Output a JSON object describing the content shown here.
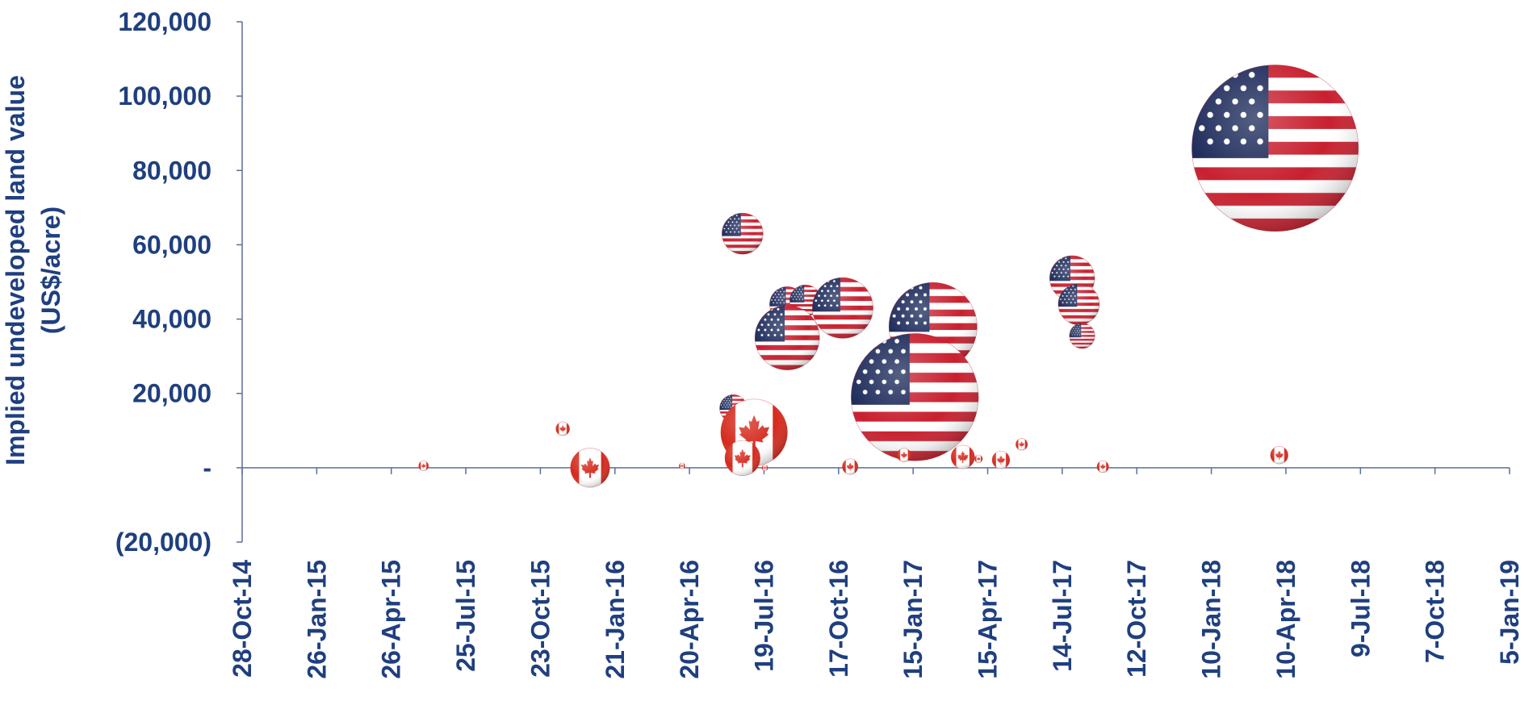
{
  "chart_data": {
    "type": "bubble",
    "y_label": [
      "Implied undeveloped land value",
      "(US$/acre)"
    ],
    "xlim": [
      "2014-10-28",
      "2019-01-05"
    ],
    "xticks": [
      {
        "value": "2014-10-28",
        "label": "28-Oct-14"
      },
      {
        "value": "2015-01-26",
        "label": "26-Jan-15"
      },
      {
        "value": "2015-04-26",
        "label": "26-Apr-15"
      },
      {
        "value": "2015-07-25",
        "label": "25-Jul-15"
      },
      {
        "value": "2015-10-23",
        "label": "23-Oct-15"
      },
      {
        "value": "2016-01-21",
        "label": "21-Jan-16"
      },
      {
        "value": "2016-04-20",
        "label": "20-Apr-16"
      },
      {
        "value": "2016-07-19",
        "label": "19-Jul-16"
      },
      {
        "value": "2016-10-17",
        "label": "17-Oct-16"
      },
      {
        "value": "2017-01-15",
        "label": "15-Jan-17"
      },
      {
        "value": "2017-04-15",
        "label": "15-Apr-17"
      },
      {
        "value": "2017-07-14",
        "label": "14-Jul-17"
      },
      {
        "value": "2017-10-12",
        "label": "12-Oct-17"
      },
      {
        "value": "2018-01-10",
        "label": "10-Jan-18"
      },
      {
        "value": "2018-04-10",
        "label": "10-Apr-18"
      },
      {
        "value": "2018-07-09",
        "label": "9-Jul-18"
      },
      {
        "value": "2018-10-07",
        "label": "7-Oct-18"
      },
      {
        "value": "2019-01-05",
        "label": "5-Jan-19"
      }
    ],
    "ylim": [
      -20000,
      120000
    ],
    "yticks": [
      {
        "value": -20000,
        "label": "(20,000)"
      },
      {
        "value": 0,
        "label": "-"
      },
      {
        "value": 20000,
        "label": "20,000"
      },
      {
        "value": 40000,
        "label": "40,000"
      },
      {
        "value": 60000,
        "label": "60,000"
      },
      {
        "value": 80000,
        "label": "80,000"
      },
      {
        "value": 100000,
        "label": "100,000"
      },
      {
        "value": 120000,
        "label": "120,000"
      }
    ],
    "series": [
      {
        "color": "#b22234",
        "x": [
          "2016-06-23",
          "2016-08-16",
          "2016-09-07",
          "2016-10-22",
          "2016-08-16",
          "2016-06-12",
          "2017-02-08",
          "2017-01-17",
          "2017-07-26",
          "2017-08-03",
          "2017-08-07",
          "2018-03-28"
        ],
        "values": [
          63000,
          44000,
          45000,
          43000,
          35000,
          16000,
          38000,
          19000,
          51000,
          44000,
          35500,
          86000
        ],
        "sizes": [
          441,
          324,
          256,
          961,
          1089,
          196,
          2025,
          4225,
          529,
          441,
          169,
          7225
        ]
      },
      {
        "color": "#d52b1e",
        "x": [
          "2015-06-04",
          "2015-11-19",
          "2015-12-22",
          "2016-04-11",
          "2016-07-07",
          "2016-06-23",
          "2016-07-20",
          "2016-10-31",
          "2017-01-04",
          "2017-03-16",
          "2017-04-04",
          "2017-05-01",
          "2017-05-26",
          "2017-09-01",
          "2018-04-02"
        ],
        "values": [
          500,
          10500,
          0,
          500,
          9500,
          2600,
          0,
          300,
          3400,
          2900,
          2400,
          2100,
          6300,
          300,
          3400
        ],
        "sizes": [
          25,
          49,
          400,
          9,
          1156,
          324,
          9,
          64,
          49,
          144,
          16,
          81,
          36,
          36,
          81
        ]
      }
    ]
  }
}
